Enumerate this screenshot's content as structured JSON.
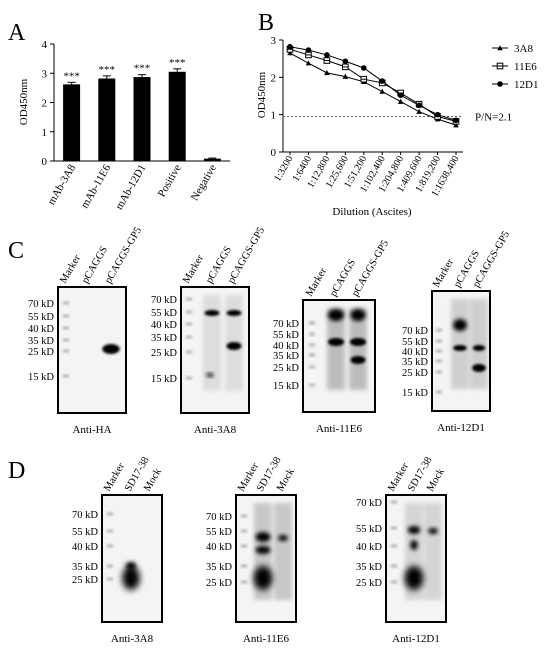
{
  "panel_labels": [
    "A",
    "B",
    "C",
    "D"
  ],
  "chart_data": [
    {
      "type": "bar",
      "panel": "A",
      "title": "",
      "ylabel": "OD450nm",
      "xlabel": "",
      "ylim": [
        0,
        4
      ],
      "yticks": [
        "0",
        "1",
        "2",
        "3",
        "4"
      ],
      "categories": [
        "mAb-3A8",
        "mAb-11E6",
        "mAb-12D1",
        "Positive",
        "Negative"
      ],
      "values": [
        2.62,
        2.82,
        2.87,
        3.05,
        0.08
      ],
      "errors": [
        0.07,
        0.09,
        0.08,
        0.1,
        0.02
      ],
      "annotations": [
        "***",
        "***",
        "***",
        "***",
        ""
      ],
      "grid": false
    },
    {
      "type": "line",
      "panel": "B",
      "title": "",
      "ylabel": "OD450nm",
      "xlabel": "Dilution (Ascites)",
      "ylim": [
        0,
        3
      ],
      "yticks": [
        "0",
        "1",
        "2",
        "3"
      ],
      "x": [
        "1:3200",
        "1:6400",
        "1:12,800",
        "1:25,600",
        "1:51,200",
        "1:102,400",
        "1:204,800",
        "1:409,600",
        "1:819,200",
        "1:1638,400"
      ],
      "series": [
        {
          "name": "3A8",
          "marker": "triangle",
          "values": [
            2.65,
            2.38,
            2.12,
            2.02,
            1.88,
            1.62,
            1.35,
            1.08,
            0.88,
            0.72
          ]
        },
        {
          "name": "11E6",
          "marker": "square",
          "values": [
            2.75,
            2.6,
            2.45,
            2.28,
            1.95,
            1.85,
            1.58,
            1.28,
            0.95,
            0.82
          ]
        },
        {
          "name": "12D1",
          "marker": "circle",
          "values": [
            2.82,
            2.73,
            2.6,
            2.43,
            2.25,
            1.9,
            1.52,
            1.25,
            1.0,
            0.85
          ]
        }
      ],
      "threshold": {
        "value": 0.95,
        "label": "P/N=2.1"
      },
      "legend": "top-right",
      "grid": false
    }
  ],
  "blots_c": [
    {
      "lanes": [
        "Marker",
        "pCAGGS",
        "pCAGGS-GP5"
      ],
      "markers": [
        "70 kD",
        "55 kD",
        "40 kD",
        "35 kD",
        "25 kD",
        "15 kD"
      ],
      "caption": "Anti-HA"
    },
    {
      "lanes": [
        "Marker",
        "pCAGGS",
        "pCAGGS-GP5"
      ],
      "markers": [
        "70 kD",
        "55 kD",
        "40 kD",
        "35 kD",
        "25 kD",
        "15 kD"
      ],
      "caption": "Anti-3A8"
    },
    {
      "lanes": [
        "Marker",
        "pCAGGS",
        "pCAGGS-GP5"
      ],
      "markers": [
        "70 kD",
        "55 kD",
        "40 kD",
        "35 kD",
        "25 kD",
        "15 kD"
      ],
      "caption": "Anti-11E6"
    },
    {
      "lanes": [
        "Marker",
        "pCAGGS",
        "pCAGGS-GP5"
      ],
      "markers": [
        "70 kD",
        "55 kD",
        "40 kD",
        "35 kD",
        "25 kD",
        "15 kD"
      ],
      "caption": "Anti-12D1"
    }
  ],
  "blots_d": [
    {
      "lanes": [
        "Marker",
        "SD17-38",
        "Mock"
      ],
      "markers": [
        "70 kD",
        "55 kD",
        "40 kD",
        "35 kD",
        "25 kD"
      ],
      "caption": "Anti-3A8"
    },
    {
      "lanes": [
        "Marker",
        "SD17-38",
        "Mock"
      ],
      "markers": [
        "70 kD",
        "55 kD",
        "40 kD",
        "35 kD",
        "25 kD"
      ],
      "caption": "Anti-11E6"
    },
    {
      "lanes": [
        "Marker",
        "SD17-38",
        "Mock"
      ],
      "markers": [
        "70 kD",
        "55 kD",
        "40 kD",
        "35 kD",
        "25 kD"
      ],
      "caption": "Anti-12D1"
    }
  ]
}
